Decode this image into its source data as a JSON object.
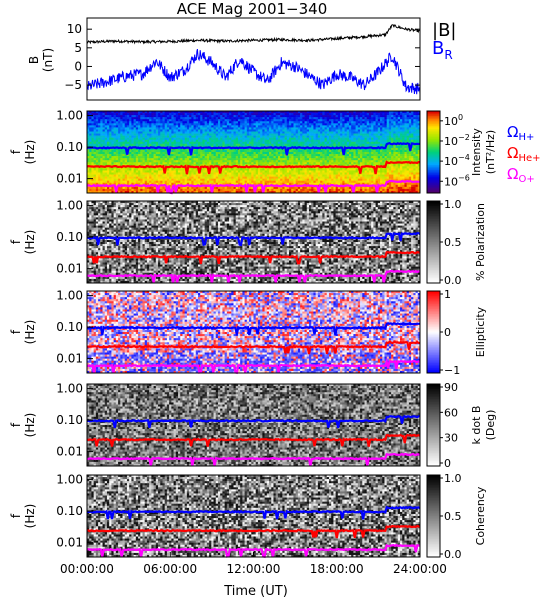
{
  "title": "ACE Mag 2001−340",
  "time_axis": {
    "label": "Time (UT)",
    "ticks": [
      "00:00:00",
      "06:00:00",
      "12:00:00",
      "18:00:00",
      "24:00:00"
    ],
    "hours": [
      0,
      6,
      12,
      18,
      24
    ]
  },
  "colors": {
    "B": "#000000",
    "BR": "#0000ff",
    "H": "#0000ff",
    "He": "#ff0000",
    "O": "#ff00ff"
  },
  "legend": {
    "B": "|B|",
    "BR": "B",
    "BR_sub": "R",
    "H": "Ω",
    "H_sub": "H+",
    "He": "Ω",
    "He_sub": "He+",
    "O": "Ω",
    "O_sub": "O+"
  },
  "freq_ylabel": "f",
  "freq_yunit": "(Hz)",
  "freq_ticks": [
    "1.00",
    "0.10",
    "0.01"
  ],
  "freq_tick_values": [
    1.0,
    0.1,
    0.01
  ],
  "chart_data": [
    {
      "id": "field",
      "type": "line",
      "ylabel": "B",
      "yunit": "(nT)",
      "ylim": [
        -9,
        13
      ],
      "yticks": [
        10,
        5,
        0,
        -5
      ],
      "ytick_labels": [
        "10",
        "5",
        "0",
        "−5"
      ],
      "series": [
        {
          "name": "|B|",
          "x_hours": [
            0,
            2,
            4,
            6,
            8,
            10,
            12,
            14,
            16,
            18,
            20,
            21.5,
            22,
            23,
            24
          ],
          "values": [
            6.5,
            6.8,
            6.6,
            6.7,
            7.0,
            6.8,
            7.0,
            7.2,
            7.0,
            7.5,
            8.0,
            8.5,
            11.0,
            10.0,
            9.5
          ]
        },
        {
          "name": "B_R",
          "x_hours": [
            0,
            1,
            2,
            3,
            4,
            5,
            6,
            7,
            8,
            9,
            10,
            11,
            12,
            13,
            14,
            15,
            16,
            17,
            18,
            19,
            20,
            21,
            22,
            23,
            24
          ],
          "values": [
            -5.5,
            -4.5,
            -3.5,
            -2.5,
            -2.0,
            1.5,
            -3.0,
            -1.0,
            3.5,
            1.0,
            -3.0,
            2.0,
            -1.5,
            -4.0,
            1.0,
            0.0,
            -2.5,
            -5.0,
            -2.0,
            -3.0,
            -5.0,
            -1.5,
            3.0,
            -5.5,
            -6.0
          ]
        }
      ]
    },
    {
      "id": "intensity",
      "type": "heatmap",
      "colorbar_label": "Intensity",
      "colorbar_unit": "(nT²/Hz)",
      "colorbar_ticks": [
        "10",
        "10",
        "10",
        "10"
      ],
      "colorbar_tick_exponents": [
        "0",
        "−2",
        "−4",
        "−6"
      ],
      "colormap": "rainbow",
      "gyro_frequencies_hz": {
        "H+": 0.095,
        "He+": 0.024,
        "O+": 0.006
      }
    },
    {
      "id": "polarization",
      "type": "heatmap",
      "colorbar_label": "% Polarization",
      "colorbar_ticks": [
        "1.0",
        "0.5",
        "0.0"
      ],
      "colormap": "gray",
      "gyro_frequencies_hz": {
        "H+": 0.095,
        "He+": 0.024,
        "O+": 0.006
      }
    },
    {
      "id": "ellipticity",
      "type": "heatmap",
      "colorbar_label": "Ellipticity",
      "colorbar_ticks": [
        "1",
        "0",
        "−1"
      ],
      "colormap": "blue-white-red",
      "gyro_frequencies_hz": {
        "H+": 0.095,
        "He+": 0.024,
        "O+": 0.006
      }
    },
    {
      "id": "kdotb",
      "type": "heatmap",
      "colorbar_label": "k dot B",
      "colorbar_unit": "(Deg)",
      "colorbar_ticks": [
        "90",
        "60",
        "30",
        "0"
      ],
      "colormap": "gray",
      "gyro_frequencies_hz": {
        "H+": 0.095,
        "He+": 0.024,
        "O+": 0.006
      }
    },
    {
      "id": "coherency",
      "type": "heatmap",
      "colorbar_label": "Coherency",
      "colorbar_ticks": [
        "1.0",
        "0.5",
        "0.0"
      ],
      "colormap": "gray",
      "gyro_frequencies_hz": {
        "H+": 0.095,
        "He+": 0.024,
        "O+": 0.006
      }
    }
  ]
}
